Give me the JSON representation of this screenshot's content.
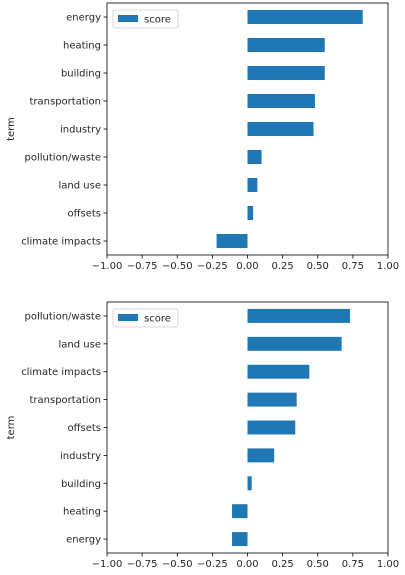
{
  "chart_data": [
    {
      "type": "bar",
      "orientation": "horizontal",
      "ylabel": "term",
      "xlim": [
        -1.0,
        1.0
      ],
      "xticks": [
        "−1.00",
        "−0.75",
        "−0.50",
        "−0.25",
        "0.00",
        "0.25",
        "0.50",
        "0.75",
        "1.00"
      ],
      "categories": [
        "energy",
        "heating",
        "building",
        "transportation",
        "industry",
        "pollution/waste",
        "land use",
        "offsets",
        "climate impacts"
      ],
      "series": [
        {
          "name": "score",
          "color": "#1f77b4",
          "values": [
            0.82,
            0.55,
            0.55,
            0.48,
            0.47,
            0.1,
            0.07,
            0.04,
            -0.22
          ]
        }
      ],
      "legend": "upper-left"
    },
    {
      "type": "bar",
      "orientation": "horizontal",
      "ylabel": "term",
      "xlim": [
        -1.0,
        1.0
      ],
      "xticks": [
        "−1.00",
        "−0.75",
        "−0.50",
        "−0.25",
        "0.00",
        "0.25",
        "0.50",
        "0.75",
        "1.00"
      ],
      "categories": [
        "pollution/waste",
        "land use",
        "climate impacts",
        "transportation",
        "offsets",
        "industry",
        "building",
        "heating",
        "energy"
      ],
      "series": [
        {
          "name": "score",
          "color": "#1f77b4",
          "values": [
            0.73,
            0.67,
            0.44,
            0.35,
            0.34,
            0.19,
            0.03,
            -0.11,
            -0.11
          ]
        }
      ],
      "legend": "upper-left"
    }
  ]
}
